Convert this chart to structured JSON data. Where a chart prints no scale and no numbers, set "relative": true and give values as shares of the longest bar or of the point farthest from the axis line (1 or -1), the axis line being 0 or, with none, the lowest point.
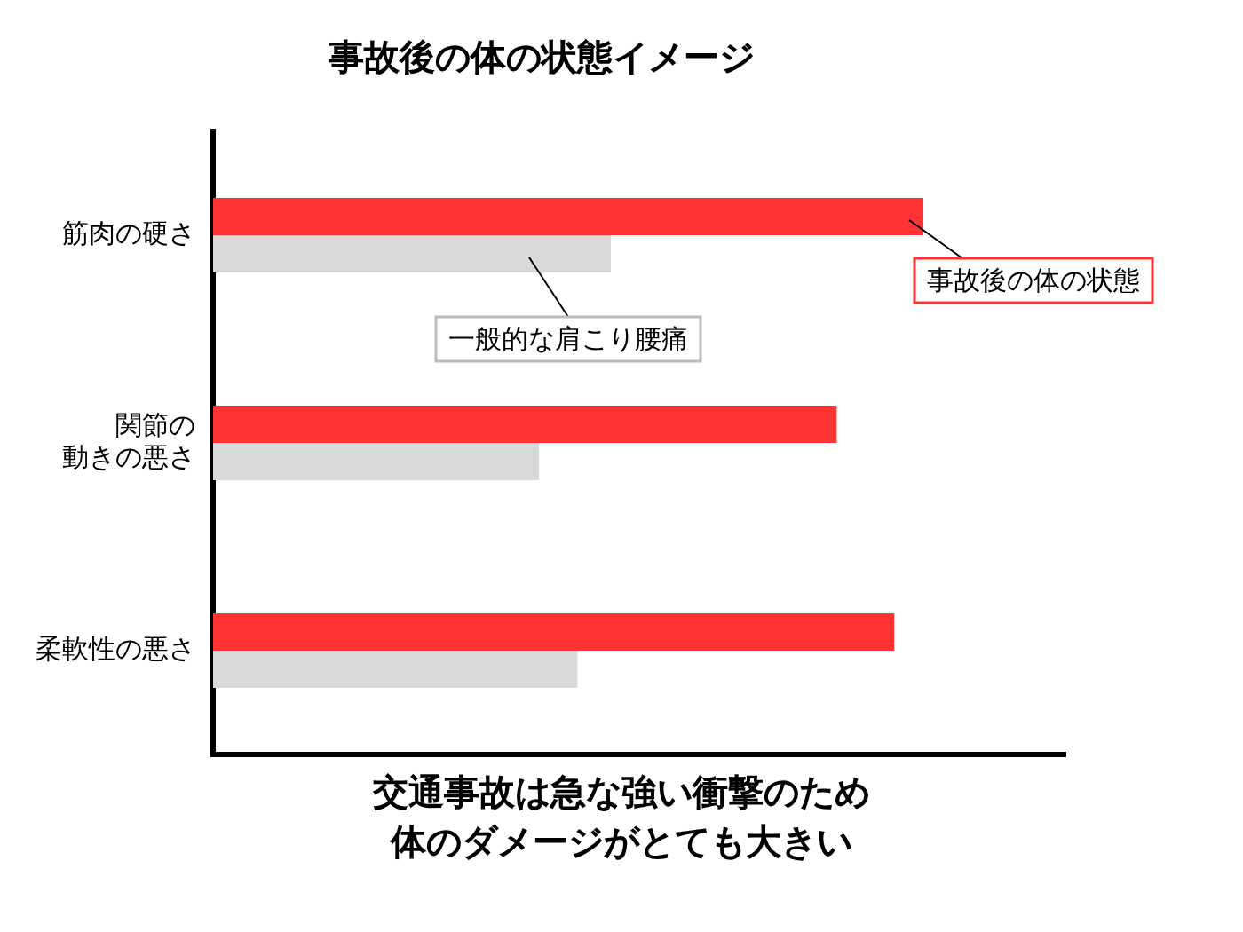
{
  "chart_data": {
    "type": "bar",
    "orientation": "horizontal",
    "relative": true,
    "title": "事故後の体の状態イメージ",
    "categories": [
      "筋肉の硬さ",
      "関節の動きの悪さ",
      "柔軟性の悪さ"
    ],
    "series": [
      {
        "name": "事故後の体の状態",
        "color": "#ff3333",
        "values": [
          1,
          0.878,
          0.959
        ]
      },
      {
        "name": "一般的な肩こり腰痛",
        "color": "#d9d9d9",
        "values": [
          0.56,
          0.459,
          0.513
        ]
      }
    ],
    "annotations": [
      "交通事故は急な強い衝撃のため体のダメージがとても大きい"
    ],
    "legend": false,
    "grid": false
  }
}
